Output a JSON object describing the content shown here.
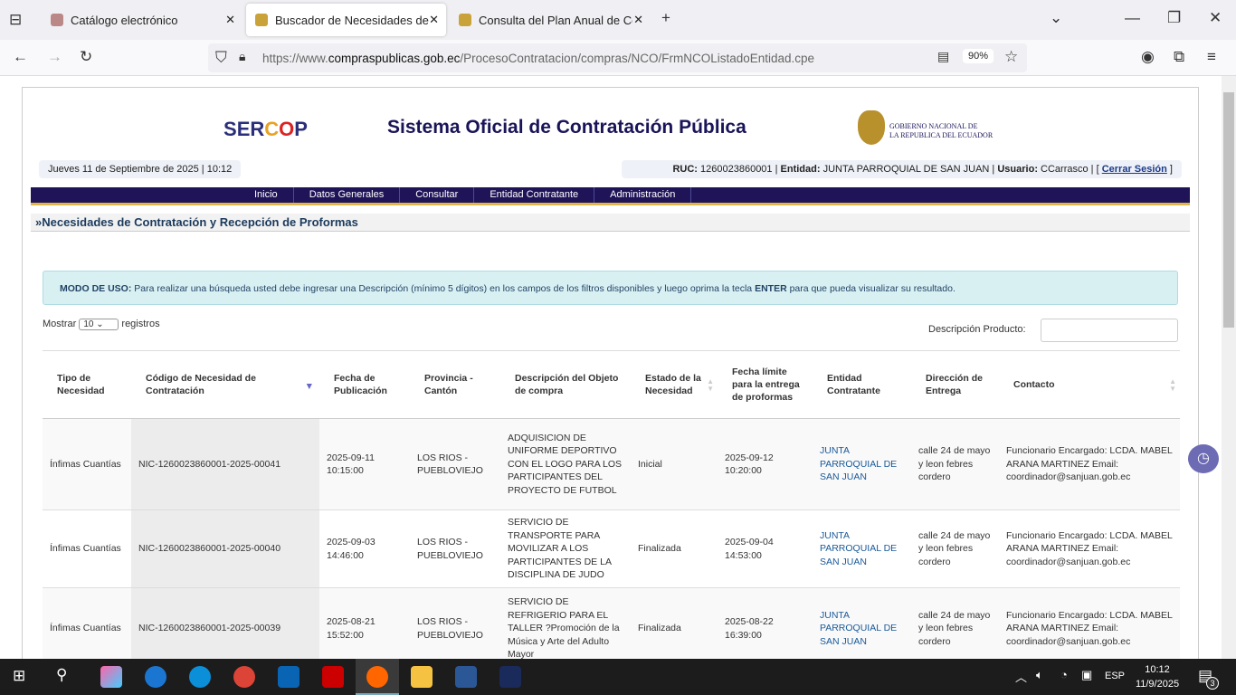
{
  "browser": {
    "tabs": [
      {
        "label": "Catálogo electrónico"
      },
      {
        "label": "Buscador de Necesidades de Co"
      },
      {
        "label": "Consulta del Plan Anual de Con"
      }
    ],
    "url_prefix": "https://www.",
    "url_domain": "compraspublicas.gob.ec",
    "url_path": "/ProcesoContratacion/compras/NCO/FrmNCOListadoEntidad.cpe",
    "zoom": "90%"
  },
  "header": {
    "logo": "SERCOP",
    "title": "Sistema Oficial de Contratación Pública",
    "gov_line1": "GOBIERNO NACIONAL DE",
    "gov_line2": "LA REPUBLICA DEL ECUADOR",
    "date": "Jueves 11 de Septiembre de 2025 | 10:12",
    "ruc_label": "RUC:",
    "ruc": "1260023860001",
    "entidad_label": "Entidad:",
    "entidad": "JUNTA PARROQUIAL DE SAN JUAN",
    "usuario_label": "Usuario:",
    "usuario": "CCarrasco",
    "logout": "Cerrar Sesión"
  },
  "menu": [
    "Inicio",
    "Datos Generales",
    "Consultar",
    "Entidad Contratante",
    "Administración"
  ],
  "page_title": "»Necesidades de Contratación y Recepción de Proformas",
  "info": {
    "bold1": "MODO DE USO:",
    "text1": " Para realizar una búsqueda usted debe ingresar una Descripción (mínimo 5 dígitos) en los campos de los filtros disponibles y luego oprima la tecla ",
    "bold2": "ENTER",
    "text2": " para que pueda visualizar su resultado."
  },
  "controls": {
    "show": "Mostrar",
    "page_size": "10",
    "records": "registros",
    "search_label": "Descripción Producto:",
    "search_value": ""
  },
  "table": {
    "headers": [
      "Tipo de Necesidad",
      "Código de Necesidad de Contratación",
      "Fecha de Publicación",
      "Provincia - Cantón",
      "Descripción del Objeto de compra",
      "Estado de la Necesidad",
      "Fecha límite para la entrega de proformas",
      "Entidad Contratante",
      "Dirección de Entrega",
      "Contacto"
    ],
    "rows": [
      [
        "Ínfimas Cuantías",
        "NIC-1260023860001-2025-00041",
        "2025-09-11 10:15:00",
        "LOS RIOS - PUEBLOVIEJO",
        "ADQUISICION DE UNIFORME DEPORTIVO CON EL LOGO PARA LOS PARTICIPANTES DEL PROYECTO DE FUTBOL",
        "Inicial",
        "2025-09-12 10:20:00",
        "JUNTA PARROQUIAL DE SAN JUAN",
        "calle 24 de mayo y leon febres cordero",
        "Funcionario Encargado: LCDA. MABEL ARANA MARTINEZ Email: coordinador@sanjuan.gob.ec"
      ],
      [
        "Ínfimas Cuantías",
        "NIC-1260023860001-2025-00040",
        "2025-09-03 14:46:00",
        "LOS RIOS - PUEBLOVIEJO",
        "SERVICIO DE TRANSPORTE PARA MOVILIZAR A LOS PARTICIPANTES DE LA DISCIPLINA DE JUDO",
        "Finalizada",
        "2025-09-04 14:53:00",
        "JUNTA PARROQUIAL DE SAN JUAN",
        "calle 24 de mayo y leon febres cordero",
        "Funcionario Encargado: LCDA. MABEL ARANA MARTINEZ Email: coordinador@sanjuan.gob.ec"
      ],
      [
        "Ínfimas Cuantías",
        "NIC-1260023860001-2025-00039",
        "2025-08-21 15:52:00",
        "LOS RIOS - PUEBLOVIEJO",
        "SERVICIO DE REFRIGERIO PARA EL TALLER ?Promoción de la Música y Arte del Adulto Mayor",
        "Finalizada",
        "2025-08-22 16:39:00",
        "JUNTA PARROQUIAL DE SAN JUAN",
        "calle 24 de mayo y leon febres cordero",
        "Funcionario Encargado: LCDA. MABEL ARANA MARTINEZ Email: coordinador@sanjuan.gob.ec"
      ]
    ]
  },
  "taskbar": {
    "lang": "ESP",
    "time": "10:12",
    "date": "11/9/2025",
    "notifications": "3"
  }
}
